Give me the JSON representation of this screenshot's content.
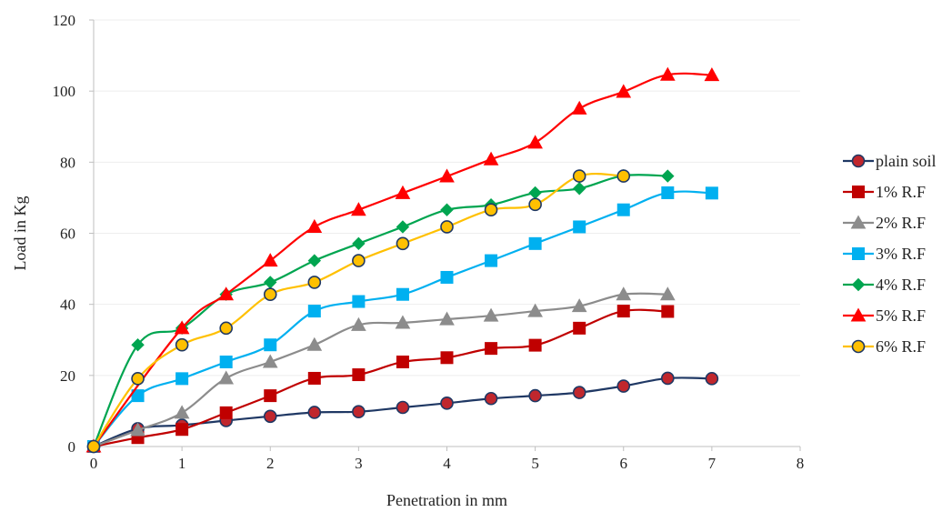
{
  "chart_data": {
    "type": "line",
    "title": "",
    "xlabel": "Penetration in mm",
    "ylabel": "Load in Kg",
    "xlim": [
      0,
      8
    ],
    "ylim": [
      0,
      120
    ],
    "xticks": [
      0,
      1,
      2,
      3,
      4,
      5,
      6,
      7,
      8
    ],
    "yticks": [
      0,
      20,
      40,
      60,
      80,
      100,
      120
    ],
    "grid": "horizontal",
    "legend_position": "right",
    "series": [
      {
        "name": "plain soil",
        "color": "#1f3864",
        "marker": "circle",
        "marker_fill": "#c0272d",
        "marker_stroke": "#1f3864",
        "x": [
          0,
          0.5,
          1,
          1.5,
          2,
          2.5,
          3,
          3.5,
          4,
          4.5,
          5,
          5.5,
          6,
          6.5,
          7
        ],
        "y": [
          0,
          5,
          6,
          7.3,
          8.5,
          9.6,
          9.8,
          11,
          12.2,
          13.5,
          14.3,
          15.2,
          17,
          19.2,
          19.1
        ]
      },
      {
        "name": "1% R.F",
        "color": "#c00000",
        "marker": "square",
        "marker_fill": "#c00000",
        "marker_stroke": "#c00000",
        "x": [
          0,
          0.5,
          1,
          1.5,
          2,
          2.5,
          3,
          3.5,
          4,
          4.5,
          5,
          5.5,
          6,
          6.5
        ],
        "y": [
          0,
          2.5,
          4.8,
          9.5,
          14.3,
          19.2,
          20.2,
          23.8,
          25,
          27.6,
          28.5,
          33.3,
          38.1,
          38
        ]
      },
      {
        "name": "2% R.F",
        "color": "#8c8c8c",
        "marker": "triangle",
        "marker_fill": "#8c8c8c",
        "marker_stroke": "#8c8c8c",
        "x": [
          0,
          0.5,
          1,
          1.5,
          2,
          2.5,
          3,
          3.5,
          4,
          4.5,
          5,
          5.5,
          6,
          6.5
        ],
        "y": [
          0,
          4.6,
          9.5,
          19.2,
          23.8,
          28.6,
          34.2,
          34.8,
          35.8,
          36.8,
          38.1,
          39.5,
          42.8,
          42.8
        ]
      },
      {
        "name": "3% R.F",
        "color": "#00b0f0",
        "marker": "square",
        "marker_fill": "#00b0f0",
        "marker_stroke": "#00b0f0",
        "x": [
          0,
          0.5,
          1,
          1.5,
          2,
          2.5,
          3,
          3.5,
          4,
          4.5,
          5,
          5.5,
          6,
          6.5,
          7
        ],
        "y": [
          0,
          14.3,
          19.1,
          23.8,
          28.6,
          38.1,
          40.8,
          42.8,
          47.6,
          52.3,
          57.1,
          61.8,
          66.6,
          71.4,
          71.3
        ]
      },
      {
        "name": "4% R.F",
        "color": "#00a550",
        "marker": "diamond",
        "marker_fill": "#00a550",
        "marker_stroke": "#00a550",
        "x": [
          0,
          0.5,
          1,
          1.5,
          2,
          2.5,
          3,
          3.5,
          4,
          4.5,
          5,
          5.5,
          6,
          6.5
        ],
        "y": [
          0,
          28.6,
          33.3,
          42.8,
          46.2,
          52.3,
          57.1,
          61.8,
          66.6,
          68,
          71.4,
          72.6,
          76.2,
          76.1
        ]
      },
      {
        "name": "5% R.F",
        "color": "#ff0000",
        "marker": "triangle",
        "marker_fill": "#ff0000",
        "marker_stroke": "#ff0000",
        "x": [
          0,
          1,
          1.5,
          2,
          2.5,
          3,
          3.5,
          4,
          4.5,
          5,
          5.5,
          6,
          6.5,
          7
        ],
        "y": [
          0,
          33.3,
          42.8,
          52.3,
          61.8,
          66.6,
          71.3,
          76,
          80.8,
          85.5,
          95.1,
          99.8,
          104.6,
          104.5
        ]
      },
      {
        "name": "6% R.F",
        "color": "#ffc000",
        "marker": "circle",
        "marker_fill": "#ffc000",
        "marker_stroke": "#1f3864",
        "x": [
          0,
          0.5,
          1,
          1.5,
          2,
          2.5,
          3,
          3.5,
          4,
          4.5,
          5,
          5.5,
          6
        ],
        "y": [
          0,
          19.1,
          28.6,
          33.3,
          42.8,
          46.2,
          52.3,
          57.1,
          61.8,
          66.6,
          68.1,
          76.1,
          76.1
        ]
      }
    ]
  }
}
